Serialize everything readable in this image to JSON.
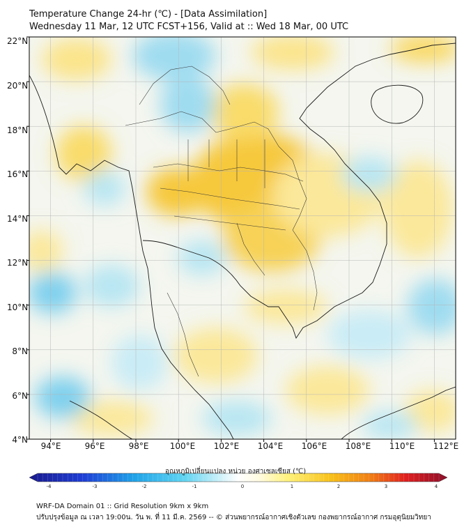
{
  "header": {
    "title_line1": "Temperature Change 24-hr (℃) - [Data Assimilation]",
    "title_line2": "Wednesday 11 Mar, 12 UTC FCST+156, Valid at :: Wed 18 Mar, 00 UTC"
  },
  "map": {
    "lat_labels": [
      "22°N",
      "20°N",
      "18°N",
      "16°N",
      "14°N",
      "12°N",
      "10°N",
      "8°N",
      "6°N",
      "4°N"
    ],
    "lon_labels": [
      "94°E",
      "96°E",
      "98°E",
      "100°E",
      "102°E",
      "104°E",
      "106°E",
      "108°E",
      "110°E",
      "112°E"
    ],
    "lat_range": [
      4,
      22
    ],
    "lon_range": [
      93,
      113
    ]
  },
  "colorbar": {
    "title": "อุณหภูมิเปลี่ยนแปลง หน่วย องศาเซลเซียส (℃)",
    "ticks": [
      "-4",
      "-3",
      "-2",
      "-1",
      "0",
      "1",
      "2",
      "3",
      "4"
    ],
    "range": [
      -4,
      4
    ]
  },
  "footer": {
    "line1": "WRF-DA Domain 01 :: Grid Resolution 9km x 9km",
    "line2": "ปรับปรุงข้อมูล ณ เวลา 19:00น. วัน พ. ที่ 11 มี.ค. 2569 -- © ส่วนพยากรณ์อากาศเชิงตัวเลข กองพยากรณ์อากาศ กรมอุตุนิยมวิทยา"
  }
}
